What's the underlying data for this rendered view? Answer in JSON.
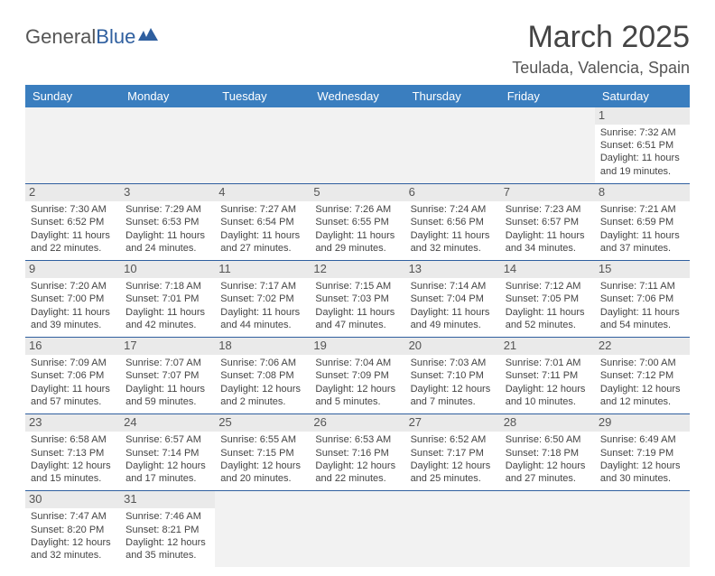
{
  "logo": {
    "text1": "General",
    "text2": "Blue"
  },
  "title": "March 2025",
  "location": "Teulada, Valencia, Spain",
  "days_of_week": [
    "Sunday",
    "Monday",
    "Tuesday",
    "Wednesday",
    "Thursday",
    "Friday",
    "Saturday"
  ],
  "colors": {
    "header_bg": "#3a7ebf",
    "header_fg": "#ffffff",
    "border": "#2f5f9f",
    "blank_bg": "#f2f2f2",
    "daynum_bg": "#eaeaea",
    "text": "#444444"
  },
  "weeks": [
    [
      null,
      null,
      null,
      null,
      null,
      null,
      {
        "n": "1",
        "sr": "Sunrise: 7:32 AM",
        "ss": "Sunset: 6:51 PM",
        "d1": "Daylight: 11 hours",
        "d2": "and 19 minutes."
      }
    ],
    [
      {
        "n": "2",
        "sr": "Sunrise: 7:30 AM",
        "ss": "Sunset: 6:52 PM",
        "d1": "Daylight: 11 hours",
        "d2": "and 22 minutes."
      },
      {
        "n": "3",
        "sr": "Sunrise: 7:29 AM",
        "ss": "Sunset: 6:53 PM",
        "d1": "Daylight: 11 hours",
        "d2": "and 24 minutes."
      },
      {
        "n": "4",
        "sr": "Sunrise: 7:27 AM",
        "ss": "Sunset: 6:54 PM",
        "d1": "Daylight: 11 hours",
        "d2": "and 27 minutes."
      },
      {
        "n": "5",
        "sr": "Sunrise: 7:26 AM",
        "ss": "Sunset: 6:55 PM",
        "d1": "Daylight: 11 hours",
        "d2": "and 29 minutes."
      },
      {
        "n": "6",
        "sr": "Sunrise: 7:24 AM",
        "ss": "Sunset: 6:56 PM",
        "d1": "Daylight: 11 hours",
        "d2": "and 32 minutes."
      },
      {
        "n": "7",
        "sr": "Sunrise: 7:23 AM",
        "ss": "Sunset: 6:57 PM",
        "d1": "Daylight: 11 hours",
        "d2": "and 34 minutes."
      },
      {
        "n": "8",
        "sr": "Sunrise: 7:21 AM",
        "ss": "Sunset: 6:59 PM",
        "d1": "Daylight: 11 hours",
        "d2": "and 37 minutes."
      }
    ],
    [
      {
        "n": "9",
        "sr": "Sunrise: 7:20 AM",
        "ss": "Sunset: 7:00 PM",
        "d1": "Daylight: 11 hours",
        "d2": "and 39 minutes."
      },
      {
        "n": "10",
        "sr": "Sunrise: 7:18 AM",
        "ss": "Sunset: 7:01 PM",
        "d1": "Daylight: 11 hours",
        "d2": "and 42 minutes."
      },
      {
        "n": "11",
        "sr": "Sunrise: 7:17 AM",
        "ss": "Sunset: 7:02 PM",
        "d1": "Daylight: 11 hours",
        "d2": "and 44 minutes."
      },
      {
        "n": "12",
        "sr": "Sunrise: 7:15 AM",
        "ss": "Sunset: 7:03 PM",
        "d1": "Daylight: 11 hours",
        "d2": "and 47 minutes."
      },
      {
        "n": "13",
        "sr": "Sunrise: 7:14 AM",
        "ss": "Sunset: 7:04 PM",
        "d1": "Daylight: 11 hours",
        "d2": "and 49 minutes."
      },
      {
        "n": "14",
        "sr": "Sunrise: 7:12 AM",
        "ss": "Sunset: 7:05 PM",
        "d1": "Daylight: 11 hours",
        "d2": "and 52 minutes."
      },
      {
        "n": "15",
        "sr": "Sunrise: 7:11 AM",
        "ss": "Sunset: 7:06 PM",
        "d1": "Daylight: 11 hours",
        "d2": "and 54 minutes."
      }
    ],
    [
      {
        "n": "16",
        "sr": "Sunrise: 7:09 AM",
        "ss": "Sunset: 7:06 PM",
        "d1": "Daylight: 11 hours",
        "d2": "and 57 minutes."
      },
      {
        "n": "17",
        "sr": "Sunrise: 7:07 AM",
        "ss": "Sunset: 7:07 PM",
        "d1": "Daylight: 11 hours",
        "d2": "and 59 minutes."
      },
      {
        "n": "18",
        "sr": "Sunrise: 7:06 AM",
        "ss": "Sunset: 7:08 PM",
        "d1": "Daylight: 12 hours",
        "d2": "and 2 minutes."
      },
      {
        "n": "19",
        "sr": "Sunrise: 7:04 AM",
        "ss": "Sunset: 7:09 PM",
        "d1": "Daylight: 12 hours",
        "d2": "and 5 minutes."
      },
      {
        "n": "20",
        "sr": "Sunrise: 7:03 AM",
        "ss": "Sunset: 7:10 PM",
        "d1": "Daylight: 12 hours",
        "d2": "and 7 minutes."
      },
      {
        "n": "21",
        "sr": "Sunrise: 7:01 AM",
        "ss": "Sunset: 7:11 PM",
        "d1": "Daylight: 12 hours",
        "d2": "and 10 minutes."
      },
      {
        "n": "22",
        "sr": "Sunrise: 7:00 AM",
        "ss": "Sunset: 7:12 PM",
        "d1": "Daylight: 12 hours",
        "d2": "and 12 minutes."
      }
    ],
    [
      {
        "n": "23",
        "sr": "Sunrise: 6:58 AM",
        "ss": "Sunset: 7:13 PM",
        "d1": "Daylight: 12 hours",
        "d2": "and 15 minutes."
      },
      {
        "n": "24",
        "sr": "Sunrise: 6:57 AM",
        "ss": "Sunset: 7:14 PM",
        "d1": "Daylight: 12 hours",
        "d2": "and 17 minutes."
      },
      {
        "n": "25",
        "sr": "Sunrise: 6:55 AM",
        "ss": "Sunset: 7:15 PM",
        "d1": "Daylight: 12 hours",
        "d2": "and 20 minutes."
      },
      {
        "n": "26",
        "sr": "Sunrise: 6:53 AM",
        "ss": "Sunset: 7:16 PM",
        "d1": "Daylight: 12 hours",
        "d2": "and 22 minutes."
      },
      {
        "n": "27",
        "sr": "Sunrise: 6:52 AM",
        "ss": "Sunset: 7:17 PM",
        "d1": "Daylight: 12 hours",
        "d2": "and 25 minutes."
      },
      {
        "n": "28",
        "sr": "Sunrise: 6:50 AM",
        "ss": "Sunset: 7:18 PM",
        "d1": "Daylight: 12 hours",
        "d2": "and 27 minutes."
      },
      {
        "n": "29",
        "sr": "Sunrise: 6:49 AM",
        "ss": "Sunset: 7:19 PM",
        "d1": "Daylight: 12 hours",
        "d2": "and 30 minutes."
      }
    ],
    [
      {
        "n": "30",
        "sr": "Sunrise: 7:47 AM",
        "ss": "Sunset: 8:20 PM",
        "d1": "Daylight: 12 hours",
        "d2": "and 32 minutes."
      },
      {
        "n": "31",
        "sr": "Sunrise: 7:46 AM",
        "ss": "Sunset: 8:21 PM",
        "d1": "Daylight: 12 hours",
        "d2": "and 35 minutes."
      },
      null,
      null,
      null,
      null,
      null
    ]
  ]
}
